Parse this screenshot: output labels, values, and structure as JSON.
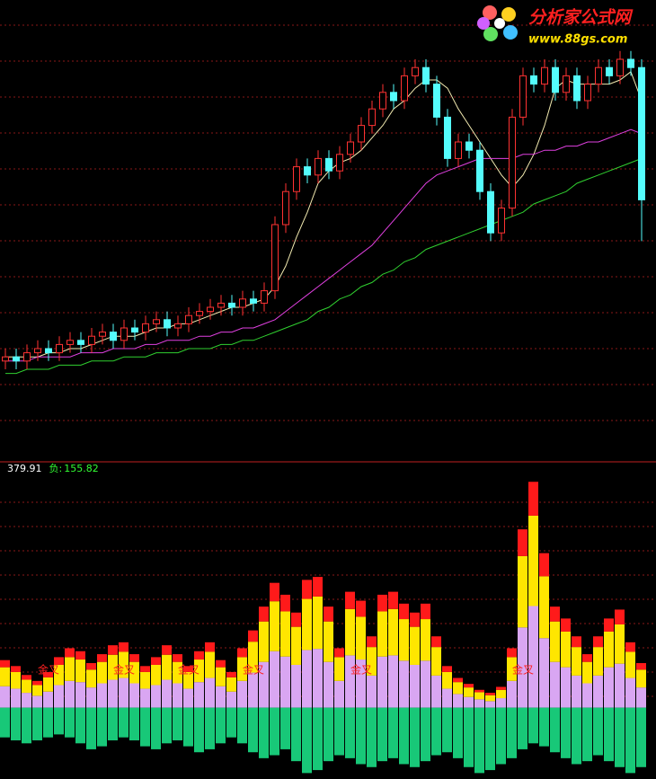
{
  "watermark": {
    "title": "分析家公式网",
    "url": "www.88gs.com"
  },
  "chart_data": [
    {
      "type": "candlestick",
      "ylim": [
        0,
        100
      ],
      "up_color": "#ff3232",
      "down_color": "#54fcfc",
      "open": [
        17,
        18,
        17,
        19,
        20,
        19,
        21,
        22,
        21,
        23,
        24,
        22,
        25,
        24,
        26,
        27,
        25,
        26,
        28,
        29,
        30,
        31,
        30,
        32,
        31,
        34,
        50,
        58,
        64,
        62,
        66,
        63,
        67,
        70,
        74,
        78,
        82,
        80,
        86,
        88,
        84,
        76,
        66,
        70,
        68,
        58,
        48,
        54,
        76,
        86,
        84,
        88,
        82,
        86,
        80,
        84,
        88,
        86,
        90,
        88
      ],
      "high": [
        20,
        20,
        21,
        22,
        22,
        23,
        24,
        24,
        25,
        26,
        26,
        27,
        27,
        28,
        29,
        29,
        28,
        30,
        31,
        32,
        33,
        33,
        34,
        34,
        36,
        52,
        60,
        66,
        66,
        68,
        68,
        69,
        72,
        76,
        80,
        84,
        84,
        88,
        90,
        90,
        86,
        78,
        72,
        72,
        70,
        60,
        56,
        78,
        88,
        88,
        90,
        90,
        88,
        88,
        86,
        90,
        90,
        92,
        92,
        90
      ],
      "low": [
        15,
        15,
        15,
        17,
        17,
        17,
        19,
        19,
        19,
        21,
        20,
        20,
        22,
        22,
        24,
        23,
        23,
        24,
        26,
        27,
        28,
        28,
        28,
        29,
        29,
        32,
        48,
        56,
        60,
        60,
        61,
        61,
        65,
        68,
        72,
        76,
        78,
        78,
        84,
        82,
        74,
        64,
        64,
        66,
        56,
        46,
        46,
        52,
        74,
        82,
        82,
        80,
        80,
        78,
        78,
        82,
        84,
        84,
        86,
        46
      ],
      "close": [
        18,
        17,
        19,
        20,
        19,
        21,
        22,
        21,
        23,
        24,
        22,
        25,
        24,
        26,
        27,
        25,
        26,
        28,
        29,
        30,
        31,
        30,
        32,
        31,
        34,
        50,
        58,
        64,
        62,
        66,
        63,
        67,
        70,
        74,
        78,
        82,
        80,
        86,
        88,
        84,
        76,
        66,
        70,
        68,
        58,
        48,
        54,
        76,
        86,
        84,
        88,
        82,
        86,
        80,
        84,
        88,
        86,
        90,
        88,
        56
      ],
      "series": [
        {
          "color": "#f2eab0",
          "values": [
            18,
            18,
            18,
            18,
            19,
            19,
            20,
            20,
            21,
            22,
            23,
            23,
            23,
            24,
            25,
            25,
            26,
            26,
            27,
            28,
            29,
            30,
            30,
            31,
            32,
            35,
            40,
            47,
            53,
            60,
            63,
            65,
            66,
            68,
            71,
            74,
            78,
            80,
            83,
            85,
            85,
            83,
            78,
            74,
            70,
            66,
            62,
            59,
            62,
            67,
            74,
            83,
            85,
            84,
            84,
            84,
            84,
            85,
            87,
            80
          ]
        },
        {
          "color": "#e040e0",
          "values": [
            17,
            17,
            17,
            18,
            18,
            18,
            18,
            19,
            19,
            19,
            20,
            20,
            20,
            21,
            21,
            22,
            22,
            22,
            23,
            23,
            24,
            24,
            25,
            25,
            26,
            27,
            29,
            31,
            33,
            35,
            37,
            39,
            41,
            43,
            45,
            48,
            51,
            54,
            57,
            60,
            62,
            63,
            64,
            65,
            66,
            66,
            66,
            66,
            67,
            67,
            68,
            68,
            69,
            69,
            70,
            70,
            71,
            72,
            73,
            72
          ]
        },
        {
          "color": "#30d030",
          "values": [
            14,
            14,
            15,
            15,
            15,
            16,
            16,
            16,
            17,
            17,
            17,
            18,
            18,
            18,
            19,
            19,
            19,
            20,
            20,
            20,
            21,
            21,
            22,
            22,
            23,
            24,
            25,
            26,
            27,
            29,
            30,
            32,
            33,
            35,
            36,
            38,
            39,
            41,
            42,
            44,
            45,
            46,
            47,
            48,
            49,
            50,
            51,
            52,
            53,
            55,
            56,
            57,
            58,
            60,
            61,
            62,
            63,
            64,
            65,
            66
          ]
        }
      ]
    },
    {
      "type": "stacked-bar",
      "ylim": [
        -120,
        400
      ],
      "series": [
        {
          "color": "#d9a6f2",
          "values": [
            36,
            32,
            25,
            20,
            27,
            38,
            45,
            43,
            34,
            41,
            47,
            50,
            41,
            32,
            38,
            47,
            41,
            32,
            43,
            50,
            36,
            27,
            45,
            59,
            77,
            95,
            86,
            72,
            97,
            99,
            77,
            45,
            88,
            81,
            54,
            86,
            88,
            79,
            72,
            79,
            54,
            32,
            23,
            18,
            14,
            11,
            16,
            45,
            135,
            171,
            117,
            77,
            68,
            54,
            41,
            54,
            68,
            74,
            50,
            34
          ]
        },
        {
          "color": "#ffe600",
          "values": [
            32,
            28,
            22,
            18,
            24,
            34,
            40,
            38,
            30,
            36,
            42,
            44,
            36,
            28,
            34,
            42,
            36,
            28,
            38,
            44,
            32,
            24,
            40,
            52,
            68,
            84,
            76,
            64,
            86,
            88,
            68,
            40,
            78,
            72,
            48,
            76,
            78,
            70,
            64,
            70,
            48,
            28,
            20,
            16,
            12,
            10,
            14,
            40,
            120,
            152,
            104,
            68,
            60,
            48,
            36,
            48,
            60,
            66,
            44,
            30
          ]
        },
        {
          "color": "#ff1a1a",
          "values": [
            12,
            10,
            8,
            7,
            9,
            13,
            15,
            14,
            11,
            13,
            16,
            16,
            13,
            10,
            13,
            16,
            13,
            10,
            14,
            16,
            12,
            9,
            15,
            19,
            25,
            31,
            28,
            24,
            32,
            33,
            25,
            15,
            29,
            27,
            18,
            28,
            29,
            26,
            24,
            26,
            18,
            10,
            7,
            6,
            4,
            4,
            5,
            15,
            45,
            57,
            39,
            25,
            22,
            18,
            13,
            18,
            22,
            25,
            16,
            11
          ]
        },
        {
          "color": "#18c878",
          "values": [
            -50,
            -55,
            -60,
            -55,
            -50,
            -45,
            -50,
            -60,
            -70,
            -65,
            -55,
            -50,
            -55,
            -65,
            -70,
            -60,
            -55,
            -65,
            -75,
            -70,
            -60,
            -50,
            -60,
            -75,
            -85,
            -80,
            -70,
            -90,
            -110,
            -105,
            -90,
            -80,
            -85,
            -95,
            -100,
            -90,
            -85,
            -95,
            -100,
            -90,
            -80,
            -75,
            -85,
            -100,
            -110,
            -105,
            -95,
            -85,
            -70,
            -60,
            -65,
            -75,
            -85,
            -95,
            -90,
            -80,
            -90,
            -100,
            -110,
            -100
          ]
        }
      ],
      "readouts": [
        {
          "value": 379.91,
          "color": "#ffffff"
        },
        {
          "label": "负:",
          "value": 155.82,
          "color": "#33ff33"
        }
      ],
      "annotations": [
        {
          "label": "金叉",
          "x": 4
        },
        {
          "label": "金叉",
          "x": 11
        },
        {
          "label": "金叉",
          "x": 17
        },
        {
          "label": "金叉",
          "x": 23
        },
        {
          "label": "金叉",
          "x": 33
        },
        {
          "label": "金叉",
          "x": 48
        }
      ]
    }
  ]
}
